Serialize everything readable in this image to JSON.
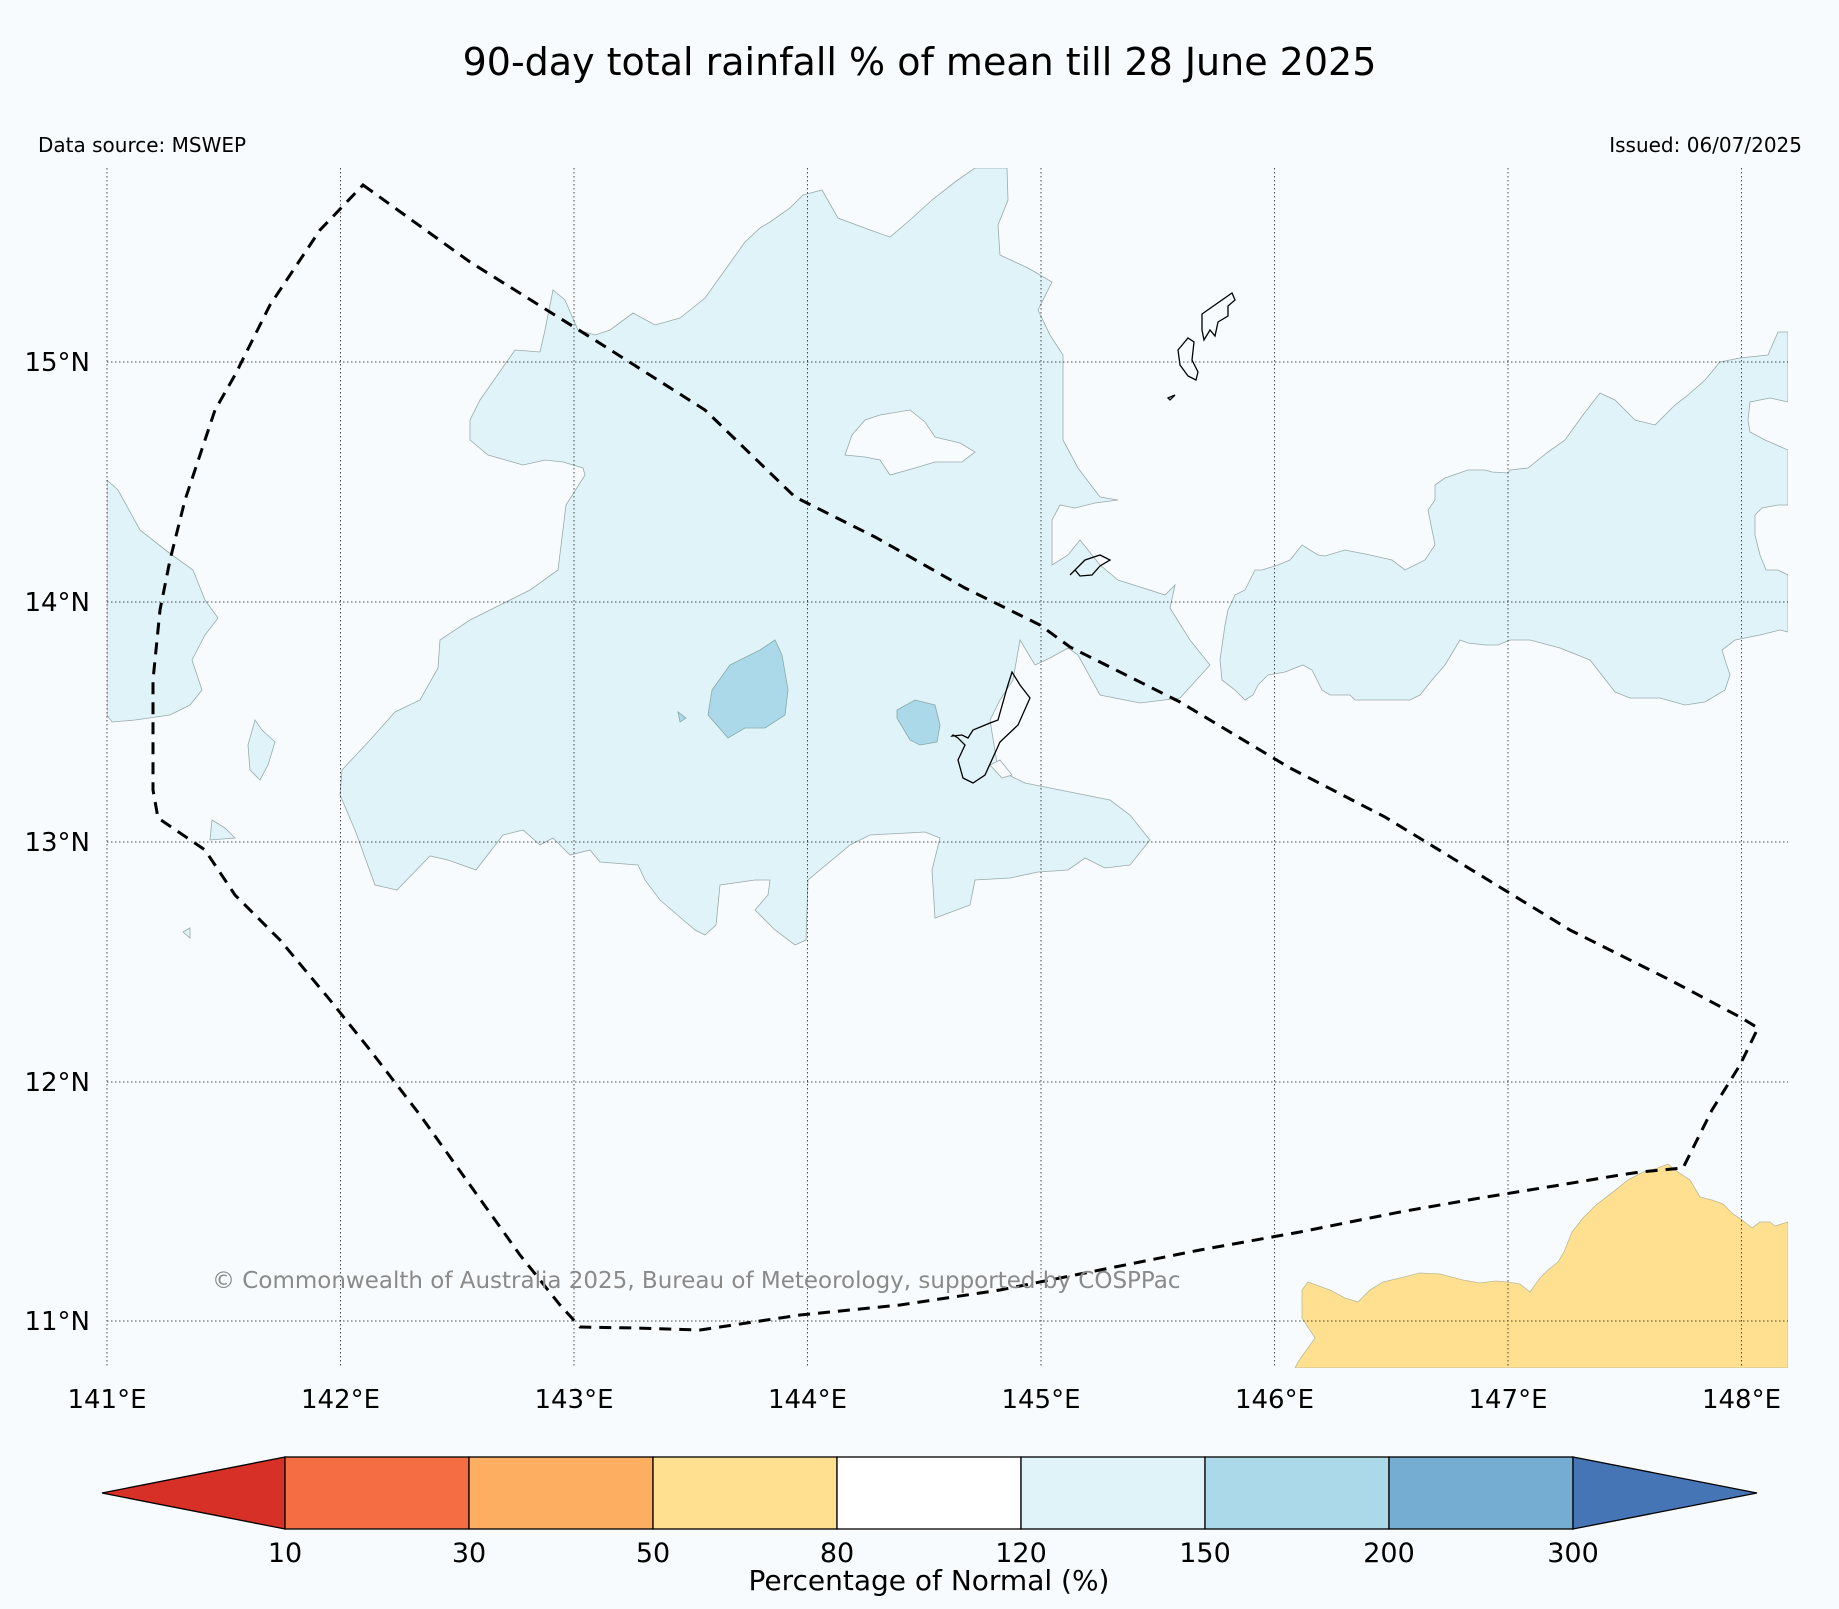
{
  "title": "90-day total rainfall % of mean till 28 June 2025",
  "data_source": "Data source: MSWEP",
  "issued": "Issued: 06/07/2025",
  "copyright": "© Commonwealth of Australia 2025, Bureau of Meteorology, supported by COSPPac",
  "map": {
    "lon_range": [
      141.0,
      148.2
    ],
    "lat_range": [
      10.8,
      15.8
    ],
    "gridlines": true,
    "lon_ticks": [
      "141°E",
      "142°E",
      "143°E",
      "144°E",
      "145°E",
      "146°E",
      "147°E",
      "148°E"
    ],
    "lat_ticks": [
      "15°N",
      "14°N",
      "13°N",
      "12°N",
      "11°N"
    ],
    "region_boundary": "dashed"
  },
  "colorbar": {
    "label": "Percentage of Normal (%)",
    "ticks": [
      "10",
      "30",
      "50",
      "80",
      "120",
      "150",
      "200",
      "300"
    ],
    "colors": [
      "#d73027",
      "#f46d43",
      "#fdae61",
      "#fee090",
      "#ffffff",
      "#e0f3f8",
      "#abd9e9",
      "#74add1",
      "#4575b4"
    ],
    "extend": "both"
  },
  "colors": {
    "background": "#f7fbfd",
    "wet_120_150": "#e0f3f8",
    "wet_150_200": "#abd9e9",
    "dry_50_80": "#fee090"
  }
}
